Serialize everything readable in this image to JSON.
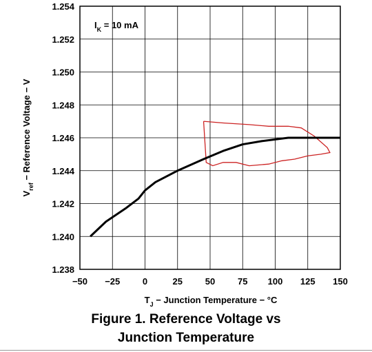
{
  "chart_data": {
    "type": "line",
    "annotation": {
      "main": "I",
      "sub": "K",
      "rest": " = 10 mA"
    },
    "ylabel": {
      "main": "V",
      "sub": "ref",
      "rest": " − Reference Voltage − V"
    },
    "xlabel": {
      "main": "T",
      "sub": "J",
      "rest": " − Junction Temperature − °C"
    },
    "xlim": [
      -50,
      150
    ],
    "ylim": [
      1.238,
      1.254
    ],
    "x_ticks": [
      -50,
      -25,
      0,
      25,
      50,
      75,
      100,
      125,
      150
    ],
    "x_tick_labels": [
      "−50",
      "−25",
      "0",
      "25",
      "50",
      "75",
      "100",
      "125",
      "150"
    ],
    "y_ticks": [
      1.238,
      1.24,
      1.242,
      1.244,
      1.246,
      1.248,
      1.25,
      1.252,
      1.254
    ],
    "y_tick_labels": [
      "1.238",
      "1.240",
      "1.242",
      "1.244",
      "1.246",
      "1.248",
      "1.250",
      "1.252",
      "1.254"
    ],
    "grid": true,
    "series": [
      {
        "color": "#000000",
        "x": [
          -42,
          -30,
          -15,
          -5,
          0,
          8,
          25,
          45,
          60,
          75,
          90,
          100,
          110,
          120,
          130,
          150
        ],
        "y": [
          1.24,
          1.2409,
          1.2417,
          1.2423,
          1.2428,
          1.2433,
          1.244,
          1.2447,
          1.2452,
          1.2456,
          1.2458,
          1.2459,
          1.246,
          1.246,
          1.246,
          1.246
        ]
      }
    ],
    "markup": {
      "color": "#cc2222",
      "x": [
        45,
        60,
        80,
        95,
        110,
        120,
        130,
        140,
        142,
        135,
        125,
        115,
        105,
        95,
        80,
        70,
        60,
        52,
        47,
        45
      ],
      "y": [
        1.247,
        1.2469,
        1.2468,
        1.2467,
        1.2467,
        1.2466,
        1.2461,
        1.2454,
        1.2451,
        1.245,
        1.2449,
        1.2447,
        1.2446,
        1.2444,
        1.2443,
        1.2445,
        1.2445,
        1.2443,
        1.2445,
        1.247
      ]
    }
  },
  "caption": {
    "line1": "Figure 1. Reference Voltage vs",
    "line2": "Junction Temperature"
  }
}
